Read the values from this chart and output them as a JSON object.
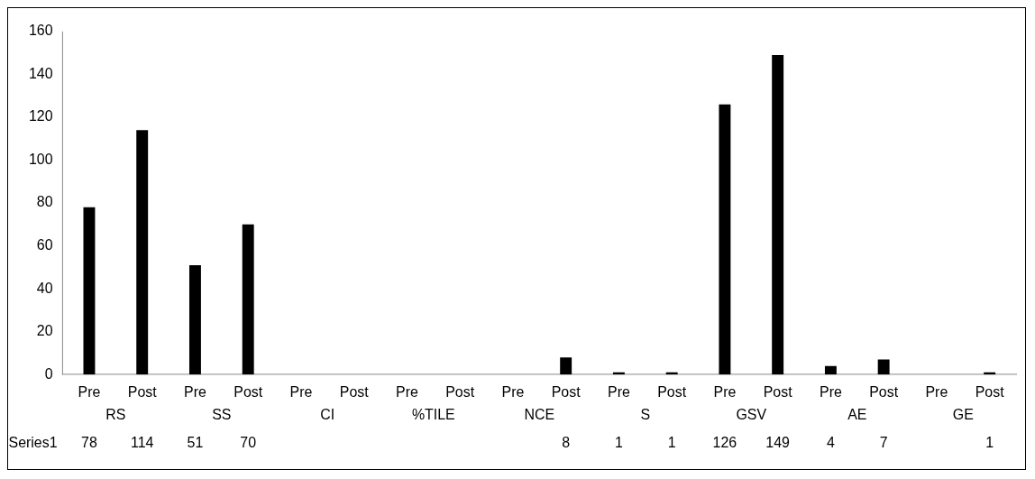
{
  "chart_data": {
    "type": "bar",
    "categories": [
      "Pre",
      "Post",
      "Pre",
      "Post",
      "Pre",
      "Post",
      "Pre",
      "Post",
      "Pre",
      "Post",
      "Pre",
      "Post",
      "Pre",
      "Post",
      "Pre",
      "Post",
      "Pre",
      "Post"
    ],
    "series": [
      {
        "name": "Series1",
        "color": "#000000",
        "values": [
          78,
          114,
          51,
          70,
          null,
          null,
          null,
          null,
          null,
          8,
          1,
          1,
          126,
          149,
          4,
          7,
          null,
          1
        ]
      }
    ],
    "data_labels": true,
    "annotations": [
      "RS",
      "SS",
      "CI",
      "%TILE",
      "NCE",
      "S",
      "GSV",
      "AE",
      "GE"
    ],
    "ylim": [
      0,
      160
    ],
    "yticks": [
      0,
      20,
      40,
      60,
      80,
      100,
      120,
      140,
      160
    ],
    "grid": false,
    "legend": false
  }
}
